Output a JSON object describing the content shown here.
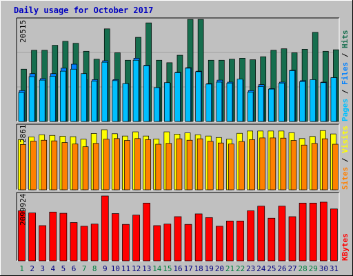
{
  "title": "Daily usage for October 2017",
  "colors": {
    "background": "#c0c0c0",
    "panel": "#c0c0c0",
    "title": "#0000c0",
    "hits": "#166e4e",
    "files": "#0080ff",
    "pages": "#00bfff",
    "visits": "#ffff00",
    "sites": "#ff8000",
    "kbytes": "#ff0000",
    "weekend_day": "#008040",
    "weekday": "#000080"
  },
  "panels": {
    "top": {
      "max_label": "20515",
      "legend": {
        "pages": "Pages",
        "files": "Files",
        "hits": "Hits",
        "sep": " / "
      }
    },
    "middle": {
      "max_label": "2861",
      "legend": {
        "sites": "Sites",
        "visits": "Visits",
        "sep": " / "
      }
    },
    "bottom": {
      "max_label": "2099924",
      "legend": {
        "kbytes": "KBytes"
      }
    }
  },
  "chart_data": [
    {
      "type": "bar",
      "title": "Daily usage for October 2017",
      "categories": [
        "1",
        "2",
        "3",
        "4",
        "5",
        "6",
        "7",
        "8",
        "9",
        "10",
        "11",
        "12",
        "13",
        "14",
        "15",
        "16",
        "17",
        "18",
        "19",
        "20",
        "21",
        "22",
        "23",
        "24",
        "25",
        "26",
        "27",
        "28",
        "29",
        "30",
        "31"
      ],
      "weekend_days": [
        "1",
        "7",
        "8",
        "14",
        "15",
        "21",
        "22",
        "28",
        "29"
      ],
      "ylim": [
        0,
        20515
      ],
      "grid": true,
      "series": [
        {
          "name": "Hits",
          "values": [
            10500,
            14300,
            14300,
            15300,
            16100,
            15700,
            14100,
            12500,
            18600,
            13800,
            12300,
            16900,
            19800,
            12300,
            11800,
            13300,
            20500,
            20500,
            12300,
            12300,
            12500,
            12700,
            12400,
            13000,
            14300,
            14600,
            13800,
            14500,
            17900,
            14100,
            14400
          ]
        },
        {
          "name": "Files",
          "values": [
            6200,
            9600,
            8600,
            9600,
            10700,
            11500,
            8400,
            8400,
            12200,
            8400,
            7600,
            12700,
            11300,
            6800,
            7700,
            9900,
            10800,
            10100,
            7600,
            8300,
            7900,
            8300,
            6200,
            7400,
            6600,
            7900,
            10300,
            8200,
            8300,
            7900,
            8800
          ]
        },
        {
          "name": "Pages",
          "values": [
            5800,
            9000,
            8300,
            9100,
            10100,
            10500,
            9600,
            8100,
            11900,
            8200,
            7600,
            12300,
            11200,
            6800,
            7800,
            9800,
            10700,
            10000,
            7500,
            7900,
            7700,
            8500,
            5900,
            7000,
            6500,
            7700,
            10200,
            8000,
            8400,
            7800,
            8800
          ]
        }
      ]
    },
    {
      "type": "bar",
      "categories": [
        "1",
        "2",
        "3",
        "4",
        "5",
        "6",
        "7",
        "8",
        "9",
        "10",
        "11",
        "12",
        "13",
        "14",
        "15",
        "16",
        "17",
        "18",
        "19",
        "20",
        "21",
        "22",
        "23",
        "24",
        "25",
        "26",
        "27",
        "28",
        "29",
        "30",
        "31"
      ],
      "ylim": [
        0,
        2861
      ],
      "series": [
        {
          "name": "Visits",
          "values": [
            2390,
            2520,
            2620,
            2590,
            2550,
            2530,
            2410,
            2680,
            2861,
            2670,
            2560,
            2760,
            2560,
            2420,
            2760,
            2650,
            2710,
            2620,
            2560,
            2490,
            2410,
            2690,
            2800,
            2800,
            2800,
            2800,
            2720,
            2440,
            2540,
            2820,
            2660
          ]
        },
        {
          "name": "Sites",
          "values": [
            2160,
            2320,
            2360,
            2330,
            2250,
            2180,
            2050,
            2210,
            2410,
            2440,
            2350,
            2440,
            2390,
            2170,
            2210,
            2430,
            2360,
            2430,
            2310,
            2230,
            2180,
            2300,
            2390,
            2470,
            2470,
            2460,
            2350,
            2130,
            2210,
            2430,
            2170
          ]
        }
      ]
    },
    {
      "type": "bar",
      "categories": [
        "1",
        "2",
        "3",
        "4",
        "5",
        "6",
        "7",
        "8",
        "9",
        "10",
        "11",
        "12",
        "13",
        "14",
        "15",
        "16",
        "17",
        "18",
        "19",
        "20",
        "21",
        "22",
        "23",
        "24",
        "25",
        "26",
        "27",
        "28",
        "29",
        "30",
        "31"
      ],
      "ylim": [
        0,
        2099924
      ],
      "series": [
        {
          "name": "KBytes",
          "values": [
            1620000,
            1550000,
            1140000,
            1580000,
            1540000,
            1240000,
            1120000,
            1190000,
            2099924,
            1530000,
            1180000,
            1480000,
            1870000,
            1140000,
            1190000,
            1430000,
            1180000,
            1520000,
            1400000,
            1120000,
            1290000,
            1290000,
            1620000,
            1770000,
            1380000,
            1770000,
            1430000,
            1870000,
            1870000,
            1900000,
            1680000
          ]
        }
      ]
    }
  ]
}
